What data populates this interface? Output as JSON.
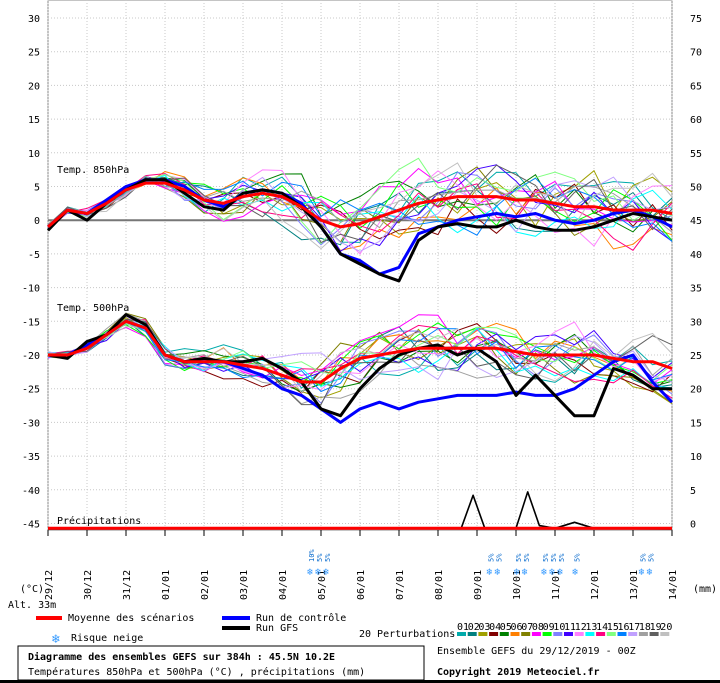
{
  "chart_data": {
    "type": "line",
    "left_axis_label": "(°C)",
    "right_axis_label": "(mm)",
    "left_ticks": [
      30,
      25,
      20,
      15,
      10,
      5,
      0,
      -5,
      -10,
      -15,
      -20,
      -25,
      -30,
      -35,
      -40,
      -45
    ],
    "right_ticks": [
      75,
      70,
      65,
      60,
      55,
      50,
      45,
      40,
      35,
      30,
      25,
      20,
      15,
      10,
      5,
      0
    ],
    "x_ticks": [
      "29/12",
      "30/12",
      "31/12",
      "01/01",
      "02/01",
      "03/01",
      "04/01",
      "05/01",
      "06/01",
      "07/01",
      "08/01",
      "09/01",
      "10/01",
      "11/01",
      "12/01",
      "13/01",
      "14/01"
    ],
    "x_days_range": [
      0,
      16
    ],
    "panel_labels": {
      "t850": "Temp. 850hPa",
      "t500": "Temp. 500hPa",
      "precip": "Précipitations"
    },
    "altitude": "Alt. 33m",
    "snow": [
      {
        "day": 6.9,
        "labels": [
          "10%",
          "5%",
          "5%"
        ]
      },
      {
        "day": 11.5,
        "labels": [
          "5%",
          "5%"
        ]
      },
      {
        "day": 12.2,
        "labels": [
          "5%",
          "5%"
        ]
      },
      {
        "day": 12.9,
        "labels": [
          "5%",
          "5%",
          "5%"
        ]
      },
      {
        "day": 13.7,
        "labels": [
          "5%"
        ]
      },
      {
        "day": 15.4,
        "labels": [
          "5%",
          "5%"
        ]
      }
    ],
    "series": [
      {
        "name": "Moyenne des scénarios",
        "color": "#ff0000",
        "panel": "t850",
        "x": [
          0,
          0.5,
          1,
          1.5,
          2,
          2.5,
          3,
          3.5,
          4,
          4.5,
          5,
          5.5,
          6,
          6.5,
          7,
          7.5,
          8,
          8.5,
          9,
          9.5,
          10,
          10.5,
          11,
          11.5,
          12,
          12.5,
          13,
          13.5,
          14,
          14.5,
          15,
          15.5,
          16
        ],
        "y": [
          -1,
          1.5,
          1,
          2.5,
          4.5,
          5.5,
          5.5,
          4.5,
          3,
          2.5,
          3.5,
          4,
          3.5,
          2,
          0,
          -1,
          -0.5,
          0.5,
          1.5,
          2.5,
          3,
          3.5,
          3.5,
          3.5,
          3,
          3,
          2.5,
          2,
          2,
          1.5,
          1.5,
          1.5,
          1
        ]
      },
      {
        "name": "Run de contrôle",
        "color": "#0000ff",
        "panel": "t850",
        "x": [
          0,
          0.5,
          1,
          1.5,
          2,
          2.5,
          3,
          3.5,
          4,
          4.5,
          5,
          5.5,
          6,
          6.5,
          7,
          7.5,
          8,
          8.5,
          9,
          9.5,
          10,
          10.5,
          11,
          11.5,
          12,
          12.5,
          13,
          13.5,
          14,
          14.5,
          15,
          15.5,
          16
        ],
        "y": [
          -1,
          1.5,
          1,
          3,
          5,
          6,
          6,
          5,
          3,
          2,
          4,
          4.5,
          4,
          2.5,
          -1,
          -5,
          -6,
          -8,
          -7,
          -2,
          -1,
          0,
          0.5,
          1,
          0.5,
          1,
          0,
          -0.5,
          0,
          1,
          1.5,
          0.5,
          -1
        ]
      },
      {
        "name": "Run GFS",
        "color": "#000000",
        "panel": "t850",
        "x": [
          0,
          0.5,
          1,
          1.5,
          2,
          2.5,
          3,
          3.5,
          4,
          4.5,
          5,
          5.5,
          6,
          6.5,
          7,
          7.5,
          8,
          8.5,
          9,
          9.5,
          10,
          10.5,
          11,
          11.5,
          12,
          12.5,
          13,
          13.5,
          14,
          14.5,
          15,
          15.5,
          16
        ],
        "y": [
          -1.5,
          1.5,
          0,
          2.5,
          4.5,
          6,
          6,
          4,
          2,
          1.5,
          4,
          4.5,
          4,
          2,
          -1,
          -5,
          -6.5,
          -8,
          -9,
          -3,
          -1,
          -0.5,
          -1,
          -1,
          0,
          -1,
          -1.5,
          -1.5,
          -1,
          0,
          1,
          0.5,
          0
        ]
      },
      {
        "name": "Moyenne des scénarios",
        "color": "#ff0000",
        "panel": "t500",
        "x": [
          0,
          0.5,
          1,
          1.5,
          2,
          2.5,
          3,
          3.5,
          4,
          4.5,
          5,
          5.5,
          6,
          6.5,
          7,
          7.5,
          8,
          8.5,
          9,
          9.5,
          10,
          10.5,
          11,
          11.5,
          12,
          12.5,
          13,
          13.5,
          14,
          14.5,
          15,
          15.5,
          16
        ],
        "y": [
          -20,
          -20,
          -19,
          -17,
          -15,
          -16,
          -20,
          -21,
          -21,
          -21,
          -21.5,
          -22,
          -23,
          -24,
          -24,
          -22,
          -20.5,
          -20,
          -19.5,
          -19,
          -19,
          -19,
          -19,
          -19,
          -19.5,
          -20,
          -20,
          -20,
          -20,
          -20.5,
          -21,
          -21,
          -22
        ]
      },
      {
        "name": "Run de contrôle",
        "color": "#0000ff",
        "panel": "t500",
        "x": [
          0,
          0.5,
          1,
          1.5,
          2,
          2.5,
          3,
          3.5,
          4,
          4.5,
          5,
          5.5,
          6,
          6.5,
          7,
          7.5,
          8,
          8.5,
          9,
          9.5,
          10,
          10.5,
          11,
          11.5,
          12,
          12.5,
          13,
          13.5,
          14,
          14.5,
          15,
          15.5,
          16
        ],
        "y": [
          -20,
          -20,
          -18.5,
          -17,
          -15,
          -16,
          -20,
          -21,
          -21,
          -21,
          -22,
          -23,
          -25,
          -26,
          -28,
          -30,
          -28,
          -27,
          -28,
          -27,
          -26.5,
          -26,
          -26,
          -26,
          -25.5,
          -26,
          -26,
          -25,
          -23,
          -21,
          -20,
          -24,
          -27
        ]
      },
      {
        "name": "Run GFS",
        "color": "#000000",
        "panel": "t500",
        "x": [
          0,
          0.5,
          1,
          1.5,
          2,
          2.5,
          3,
          3.5,
          4,
          4.5,
          5,
          5.5,
          6,
          6.5,
          7,
          7.5,
          8,
          8.5,
          9,
          9.5,
          10,
          10.5,
          11,
          11.5,
          12,
          12.5,
          13,
          13.5,
          14,
          14.5,
          15,
          15.5,
          16
        ],
        "y": [
          -20,
          -20.5,
          -18,
          -17,
          -14,
          -15.5,
          -20,
          -21,
          -20.5,
          -21,
          -21,
          -20.5,
          -22,
          -24,
          -28,
          -29,
          -25,
          -22,
          -20,
          -19,
          -18.5,
          -20,
          -19,
          -21,
          -26,
          -23,
          -26,
          -29,
          -29,
          -22,
          -23,
          -25,
          -25
        ]
      },
      {
        "name": "Run GFS",
        "color": "#000000",
        "panel": "precip",
        "x": [
          0,
          10.6,
          10.9,
          11.2,
          12,
          12.3,
          12.6,
          13.0,
          13.5,
          14,
          16
        ],
        "y": [
          0,
          0.2,
          5,
          0.1,
          0.1,
          5.5,
          0.5,
          0.1,
          1,
          0.1,
          0
        ]
      },
      {
        "name": "Moyenne des scénarios",
        "color": "#ff0000",
        "panel": "precip",
        "x": [
          0,
          16
        ],
        "y": [
          0.1,
          0.1
        ]
      }
    ]
  },
  "legend": {
    "mean": "Moyenne des scénarios",
    "control": "Run de contrôle",
    "gfs": "Run GFS",
    "snow": "Risque neige",
    "perturbations": "20 Perturbations",
    "pert_numbers": [
      "01",
      "02",
      "03",
      "04",
      "05",
      "06",
      "07",
      "08",
      "09",
      "10",
      "11",
      "12",
      "13",
      "14",
      "15",
      "16",
      "17",
      "18",
      "19",
      "20"
    ],
    "pert_colors": [
      "#00aaaa",
      "#008080",
      "#a0a000",
      "#800000",
      "#008000",
      "#ff8000",
      "#808000",
      "#ff00ff",
      "#00ff00",
      "#8080ff",
      "#4000ff",
      "#ff80ff",
      "#00ffff",
      "#ff0080",
      "#80ff80",
      "#0080ff",
      "#c0a0ff",
      "#a0a0a0",
      "#606060",
      "#c0c0c0"
    ]
  },
  "title_box": {
    "line1": "Diagramme des ensembles GEFS sur 384h : 45.5N 10.2E",
    "line2": "Températures 850hPa et 500hPa (°C) , précipitations (mm)"
  },
  "info": {
    "ensemble": "Ensemble GEFS du 29/12/2019 - 00Z",
    "copyright": "Copyright 2019 Meteociel.fr"
  }
}
